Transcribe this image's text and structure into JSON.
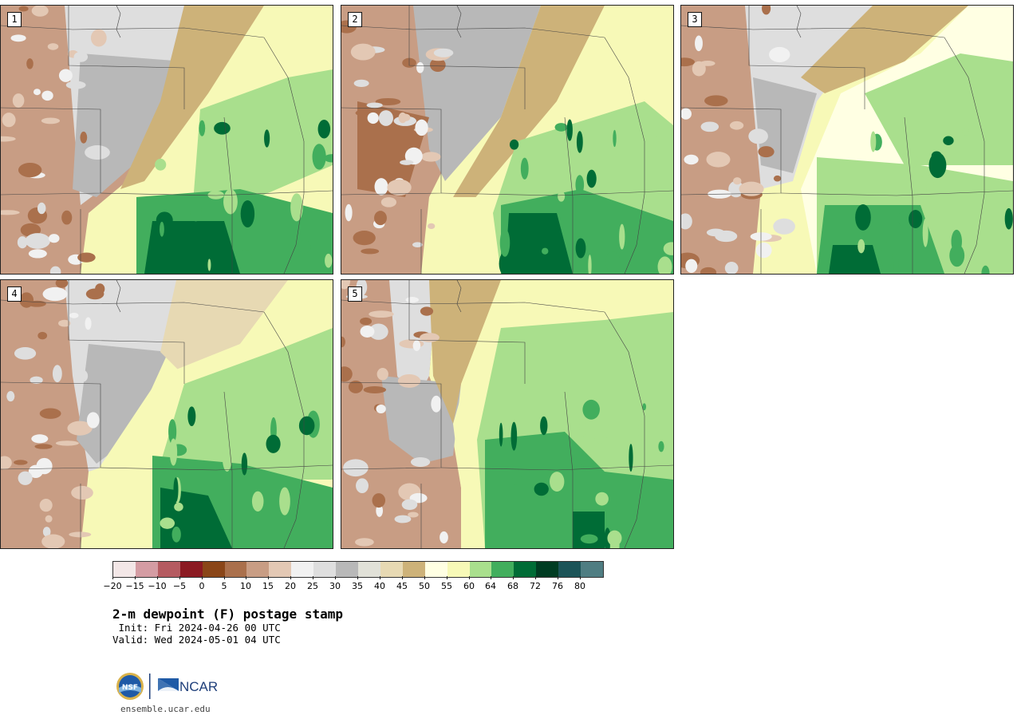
{
  "panels": [
    {
      "label": "1",
      "variant": "a"
    },
    {
      "label": "2",
      "variant": "b"
    },
    {
      "label": "3",
      "variant": "c"
    },
    {
      "label": "4",
      "variant": "d"
    },
    {
      "label": "5",
      "variant": "e"
    }
  ],
  "colorbar": {
    "colors": [
      "#f3e7e7",
      "#d49ca3",
      "#b55b61",
      "#8b1a22",
      "#8a4618",
      "#aa704c",
      "#c89d84",
      "#e3c8b4",
      "#f1f1f1",
      "#dedede",
      "#b8b8b8",
      "#e1e1d8",
      "#e7d9b3",
      "#cdb279",
      "#ffffe3",
      "#f7f9b7",
      "#a9df8d",
      "#42ae5d",
      "#006c36",
      "#003c22",
      "#1c5458",
      "#4f7d82"
    ],
    "tick_labels": [
      "−20",
      "−15",
      "−10",
      "−5",
      "0",
      "5",
      "10",
      "15",
      "20",
      "25",
      "30",
      "35",
      "40",
      "45",
      "50",
      "55",
      "60",
      "64",
      "68",
      "72",
      "76",
      "80"
    ]
  },
  "title": "2-m dewpoint (F) postage stamp",
  "init_text": " Init: Fri 2024-04-26 00 UTC",
  "valid_text": "Valid: Wed 2024-05-01 04 UTC",
  "logos": {
    "nsf": "NSF",
    "ncar": "NCAR"
  },
  "credit": "ensemble.ucar.edu"
}
